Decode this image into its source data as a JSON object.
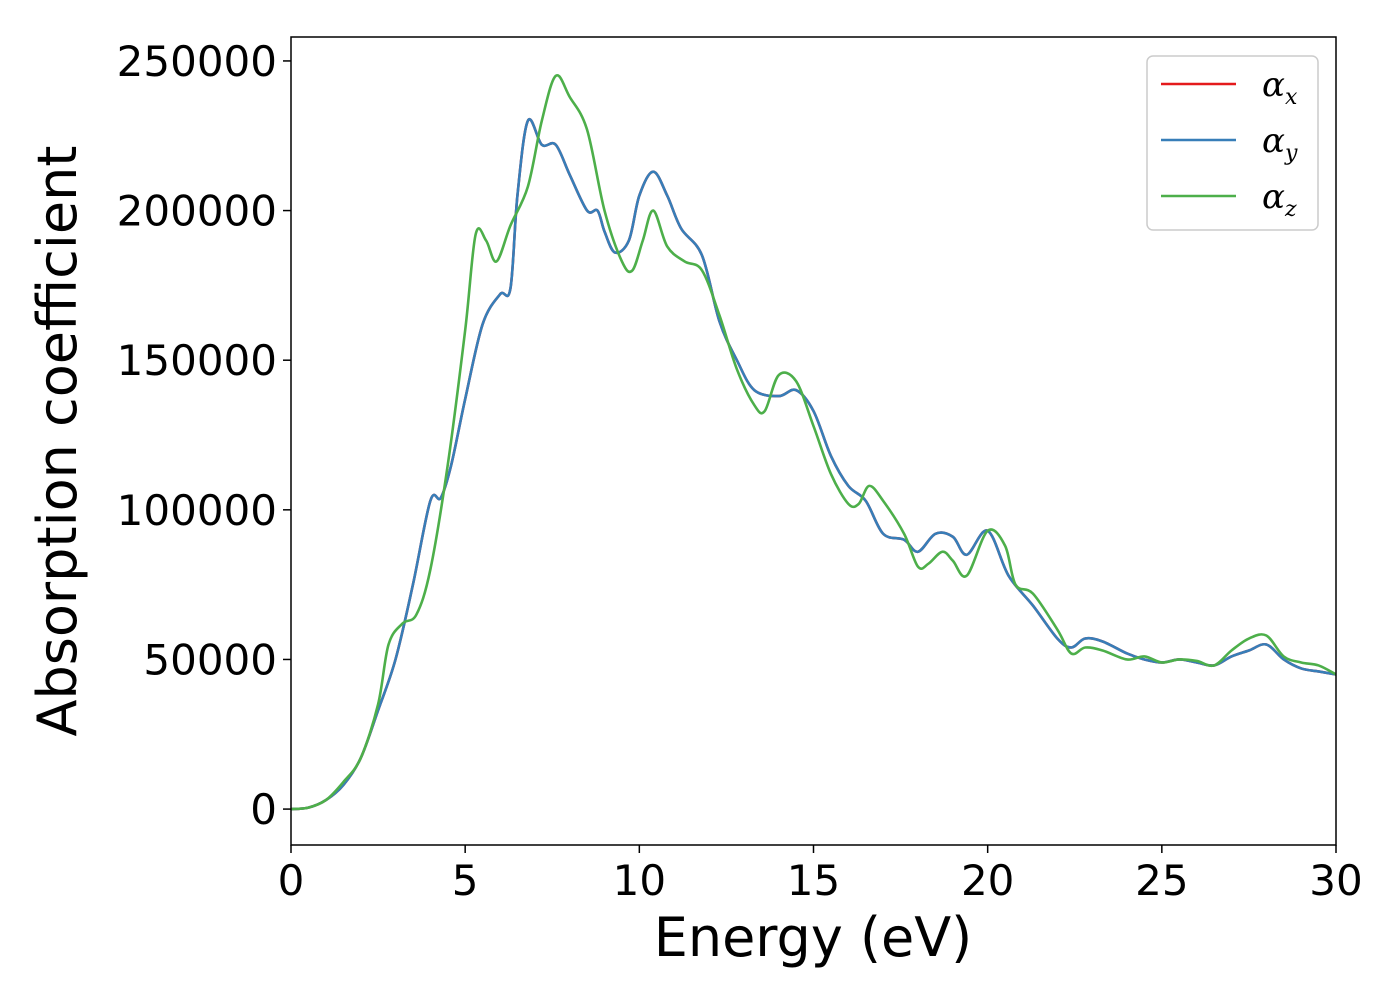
{
  "chart_data": {
    "type": "line",
    "title": "",
    "xlabel": "Energy (eV)",
    "ylabel": "Absorption coefficient",
    "xlim": [
      0,
      30
    ],
    "ylim": [
      -12000,
      258000
    ],
    "x_ticks": [
      0,
      5,
      10,
      15,
      20,
      25,
      30
    ],
    "x_tick_labels": [
      "0",
      "5",
      "10",
      "15",
      "20",
      "25",
      "30"
    ],
    "y_ticks": [
      0,
      50000,
      100000,
      150000,
      200000,
      250000
    ],
    "y_tick_labels": [
      "0",
      "50000",
      "100000",
      "150000",
      "200000",
      "250000"
    ],
    "grid": false,
    "legend_position": "top-right",
    "colors": {
      "alpha_x": "#e41a1c",
      "alpha_y": "#377eb8",
      "alpha_z": "#4daf4a"
    },
    "series": [
      {
        "name": "αx",
        "symbol": "α",
        "subscript": "x",
        "color": "#e41a1c",
        "points": [
          [
            0,
            0
          ],
          [
            0.5,
            500
          ],
          [
            1,
            3000
          ],
          [
            1.5,
            8000
          ],
          [
            2,
            17000
          ],
          [
            2.5,
            33000
          ],
          [
            3,
            50000
          ],
          [
            3.5,
            75000
          ],
          [
            4,
            103000
          ],
          [
            4.3,
            104000
          ],
          [
            4.6,
            115000
          ],
          [
            5,
            137000
          ],
          [
            5.5,
            162000
          ],
          [
            6,
            172000
          ],
          [
            6.3,
            174000
          ],
          [
            6.5,
            205000
          ],
          [
            6.8,
            230000
          ],
          [
            7.2,
            222000
          ],
          [
            7.6,
            222000
          ],
          [
            8,
            212000
          ],
          [
            8.5,
            200000
          ],
          [
            8.8,
            200000
          ],
          [
            9,
            193000
          ],
          [
            9.3,
            186000
          ],
          [
            9.7,
            190000
          ],
          [
            10,
            205000
          ],
          [
            10.4,
            213000
          ],
          [
            10.8,
            205000
          ],
          [
            11.2,
            194000
          ],
          [
            11.8,
            185000
          ],
          [
            12.3,
            163000
          ],
          [
            12.8,
            150000
          ],
          [
            13.3,
            140000
          ],
          [
            14,
            138000
          ],
          [
            14.5,
            140000
          ],
          [
            15,
            133000
          ],
          [
            15.5,
            118000
          ],
          [
            16,
            108000
          ],
          [
            16.5,
            103000
          ],
          [
            17,
            92000
          ],
          [
            17.6,
            90000
          ],
          [
            18,
            86000
          ],
          [
            18.5,
            92000
          ],
          [
            19,
            91000
          ],
          [
            19.4,
            85000
          ],
          [
            20,
            93000
          ],
          [
            20.6,
            78000
          ],
          [
            21.3,
            68000
          ],
          [
            22,
            57000
          ],
          [
            22.4,
            54000
          ],
          [
            22.8,
            57000
          ],
          [
            23.3,
            56000
          ],
          [
            24,
            52000
          ],
          [
            24.5,
            50000
          ],
          [
            25,
            49000
          ],
          [
            25.5,
            50000
          ],
          [
            26,
            49000
          ],
          [
            26.5,
            48000
          ],
          [
            27,
            51000
          ],
          [
            27.5,
            53000
          ],
          [
            28,
            55000
          ],
          [
            28.5,
            50000
          ],
          [
            29,
            47000
          ],
          [
            29.5,
            46000
          ],
          [
            30,
            45000
          ]
        ]
      },
      {
        "name": "αy",
        "symbol": "α",
        "subscript": "y",
        "color": "#377eb8",
        "points": [
          [
            0,
            0
          ],
          [
            0.5,
            500
          ],
          [
            1,
            3000
          ],
          [
            1.5,
            8000
          ],
          [
            2,
            17000
          ],
          [
            2.5,
            33000
          ],
          [
            3,
            50000
          ],
          [
            3.5,
            75000
          ],
          [
            4,
            103000
          ],
          [
            4.3,
            104000
          ],
          [
            4.6,
            115000
          ],
          [
            5,
            137000
          ],
          [
            5.5,
            162000
          ],
          [
            6,
            172000
          ],
          [
            6.3,
            174000
          ],
          [
            6.5,
            205000
          ],
          [
            6.8,
            230000
          ],
          [
            7.2,
            222000
          ],
          [
            7.6,
            222000
          ],
          [
            8,
            212000
          ],
          [
            8.5,
            200000
          ],
          [
            8.8,
            200000
          ],
          [
            9,
            193000
          ],
          [
            9.3,
            186000
          ],
          [
            9.7,
            190000
          ],
          [
            10,
            205000
          ],
          [
            10.4,
            213000
          ],
          [
            10.8,
            205000
          ],
          [
            11.2,
            194000
          ],
          [
            11.8,
            185000
          ],
          [
            12.3,
            163000
          ],
          [
            12.8,
            150000
          ],
          [
            13.3,
            140000
          ],
          [
            14,
            138000
          ],
          [
            14.5,
            140000
          ],
          [
            15,
            133000
          ],
          [
            15.5,
            118000
          ],
          [
            16,
            108000
          ],
          [
            16.5,
            103000
          ],
          [
            17,
            92000
          ],
          [
            17.6,
            90000
          ],
          [
            18,
            86000
          ],
          [
            18.5,
            92000
          ],
          [
            19,
            91000
          ],
          [
            19.4,
            85000
          ],
          [
            20,
            93000
          ],
          [
            20.6,
            78000
          ],
          [
            21.3,
            68000
          ],
          [
            22,
            57000
          ],
          [
            22.4,
            54000
          ],
          [
            22.8,
            57000
          ],
          [
            23.3,
            56000
          ],
          [
            24,
            52000
          ],
          [
            24.5,
            50000
          ],
          [
            25,
            49000
          ],
          [
            25.5,
            50000
          ],
          [
            26,
            49000
          ],
          [
            26.5,
            48000
          ],
          [
            27,
            51000
          ],
          [
            27.5,
            53000
          ],
          [
            28,
            55000
          ],
          [
            28.5,
            50000
          ],
          [
            29,
            47000
          ],
          [
            29.5,
            46000
          ],
          [
            30,
            45000
          ]
        ]
      },
      {
        "name": "αz",
        "symbol": "α",
        "subscript": "z",
        "color": "#4daf4a",
        "points": [
          [
            0,
            0
          ],
          [
            0.5,
            500
          ],
          [
            1,
            3000
          ],
          [
            1.5,
            9000
          ],
          [
            2,
            17000
          ],
          [
            2.5,
            35000
          ],
          [
            2.8,
            55000
          ],
          [
            3.2,
            62000
          ],
          [
            3.6,
            65000
          ],
          [
            4,
            80000
          ],
          [
            4.5,
            115000
          ],
          [
            5,
            160000
          ],
          [
            5.3,
            192000
          ],
          [
            5.6,
            190000
          ],
          [
            5.9,
            183000
          ],
          [
            6.3,
            195000
          ],
          [
            6.8,
            208000
          ],
          [
            7.2,
            230000
          ],
          [
            7.6,
            245000
          ],
          [
            8,
            238000
          ],
          [
            8.5,
            227000
          ],
          [
            9,
            200000
          ],
          [
            9.5,
            183000
          ],
          [
            9.8,
            180000
          ],
          [
            10.1,
            190000
          ],
          [
            10.4,
            200000
          ],
          [
            10.8,
            188000
          ],
          [
            11.3,
            183000
          ],
          [
            11.8,
            180000
          ],
          [
            12.3,
            165000
          ],
          [
            12.8,
            147000
          ],
          [
            13.3,
            135000
          ],
          [
            13.6,
            133000
          ],
          [
            14,
            145000
          ],
          [
            14.5,
            143000
          ],
          [
            15,
            128000
          ],
          [
            15.5,
            112000
          ],
          [
            16,
            102000
          ],
          [
            16.3,
            102000
          ],
          [
            16.6,
            108000
          ],
          [
            17,
            103000
          ],
          [
            17.6,
            92000
          ],
          [
            18,
            81000
          ],
          [
            18.3,
            82000
          ],
          [
            18.7,
            86000
          ],
          [
            19,
            83000
          ],
          [
            19.4,
            78000
          ],
          [
            20,
            93000
          ],
          [
            20.5,
            88000
          ],
          [
            20.8,
            75000
          ],
          [
            21.3,
            72000
          ],
          [
            22,
            60000
          ],
          [
            22.4,
            52000
          ],
          [
            22.8,
            54000
          ],
          [
            23.3,
            53000
          ],
          [
            24,
            50000
          ],
          [
            24.5,
            51000
          ],
          [
            25,
            49000
          ],
          [
            25.5,
            50000
          ],
          [
            26,
            49500
          ],
          [
            26.5,
            48000
          ],
          [
            27,
            53000
          ],
          [
            27.5,
            57000
          ],
          [
            28,
            58000
          ],
          [
            28.5,
            51000
          ],
          [
            29,
            49000
          ],
          [
            29.5,
            48000
          ],
          [
            30,
            45000
          ]
        ]
      }
    ]
  }
}
